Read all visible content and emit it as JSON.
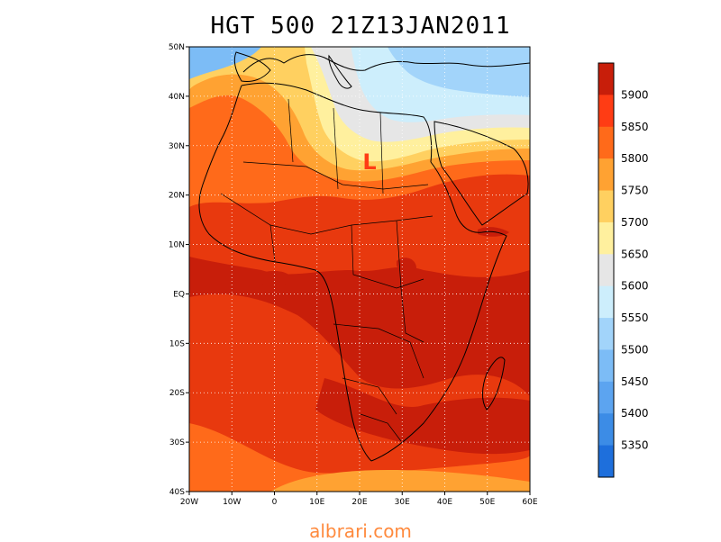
{
  "title": "HGT 500 21Z13JAN2011",
  "watermark": "albrari.com",
  "low_marker": "L",
  "lat_labels": [
    "50N",
    "40N",
    "30N",
    "20N",
    "10N",
    "EQ",
    "10S",
    "20S",
    "30S",
    "40S"
  ],
  "lon_labels": [
    "20W",
    "10W",
    "0",
    "10E",
    "20E",
    "30E",
    "40E",
    "50E",
    "60E"
  ],
  "colorbar": {
    "levels": [
      "5350",
      "5400",
      "5450",
      "5500",
      "5550",
      "5600",
      "5650",
      "5700",
      "5750",
      "5800",
      "5850",
      "5900"
    ],
    "colors": [
      "#1e6fdc",
      "#3c8ce6",
      "#5ca4f0",
      "#7cbcf6",
      "#a2d4fa",
      "#cdeefc",
      "#e6e6e6",
      "#fff09e",
      "#ffd060",
      "#ffa232",
      "#ff6a1a",
      "#ff3c14",
      "#c81e0a"
    ]
  },
  "colors": {
    "very_high": "#c81e0a",
    "high": "#e8390e",
    "mid_high": "#ff6a1a",
    "mid": "#ffa232",
    "yellow": "#ffd060",
    "pale_yellow": "#fff09e",
    "gray": "#e6e6e6",
    "pale_blue": "#cdeefc",
    "light_blue": "#a2d4fa",
    "blue": "#7cbcf6",
    "low_marker": "#ff3c14",
    "watermark": "#ff8a3d"
  }
}
